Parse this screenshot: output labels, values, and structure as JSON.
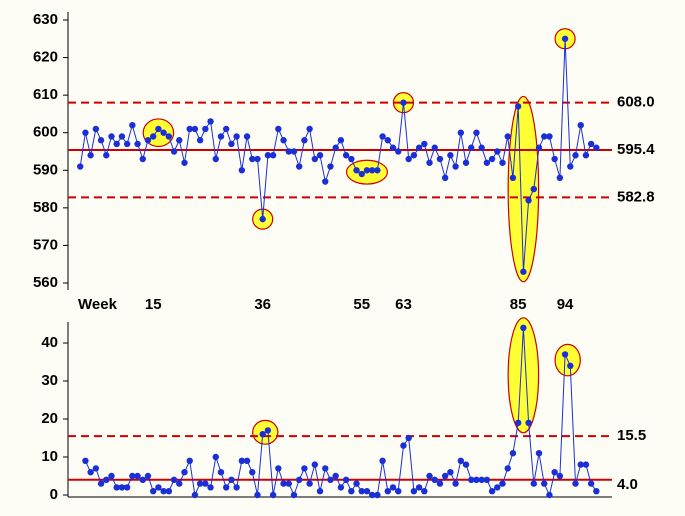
{
  "chart_data": [
    {
      "type": "line",
      "x": [
        1,
        2,
        3,
        4,
        5,
        6,
        7,
        8,
        9,
        10,
        11,
        12,
        13,
        14,
        15,
        16,
        17,
        18,
        19,
        20,
        21,
        22,
        23,
        24,
        25,
        26,
        27,
        28,
        29,
        30,
        31,
        32,
        33,
        34,
        35,
        36,
        37,
        38,
        39,
        40,
        41,
        42,
        43,
        44,
        45,
        46,
        47,
        48,
        49,
        50,
        51,
        52,
        53,
        54,
        55,
        56,
        57,
        58,
        59,
        60,
        61,
        62,
        63,
        64,
        65,
        66,
        67,
        68,
        69,
        70,
        71,
        72,
        73,
        74,
        75,
        76,
        77,
        78,
        79,
        80,
        81,
        82,
        83,
        84,
        85,
        86,
        87,
        88,
        89,
        90,
        91,
        92,
        93,
        94,
        95,
        96,
        97,
        98,
        99,
        100
      ],
      "values": [
        591,
        600,
        594,
        601,
        598,
        594,
        599,
        597,
        599,
        597,
        602,
        597,
        593,
        598,
        599,
        601,
        600,
        599,
        595,
        598,
        592,
        601,
        601,
        598,
        601,
        603,
        593,
        599,
        601,
        597,
        599,
        590,
        599,
        593,
        593,
        577,
        594,
        594,
        601,
        598,
        595,
        595,
        591,
        598,
        601,
        593,
        594,
        587,
        591,
        596,
        598,
        594,
        593,
        590,
        589,
        590,
        590,
        590,
        599,
        598,
        596,
        595,
        608,
        593,
        594,
        596,
        597,
        592,
        596,
        593,
        588,
        594,
        591,
        600,
        592,
        596,
        600,
        596,
        592,
        593,
        595,
        592,
        599,
        588,
        607,
        563,
        582,
        585,
        596,
        599,
        599,
        593,
        588,
        625,
        591,
        594,
        602,
        594,
        597,
        596
      ],
      "color": "#1a2fd6",
      "xlim": [
        0,
        103
      ],
      "ylim": [
        560,
        630
      ],
      "yticks": [
        560,
        570,
        580,
        590,
        600,
        610,
        620,
        630
      ],
      "xlabel": "Week",
      "xticks": [
        15,
        36,
        55,
        63,
        85,
        94
      ],
      "limits": [
        {
          "value": 608.0,
          "label": "608.0",
          "style": "dashed"
        },
        {
          "value": 595.4,
          "label": "595.4",
          "style": "solid"
        },
        {
          "value": 582.8,
          "label": "582.8",
          "style": "dashed"
        }
      ],
      "limit_color": "#cc0000",
      "highlights": [
        [
          15,
          17
        ],
        [
          36,
          36
        ],
        [
          54,
          58
        ],
        [
          63,
          63
        ],
        [
          85,
          87
        ],
        [
          94,
          94
        ]
      ]
    },
    {
      "type": "line",
      "x": [
        1,
        2,
        3,
        4,
        5,
        6,
        7,
        8,
        9,
        10,
        11,
        12,
        13,
        14,
        15,
        16,
        17,
        18,
        19,
        20,
        21,
        22,
        23,
        24,
        25,
        26,
        27,
        28,
        29,
        30,
        31,
        32,
        33,
        34,
        35,
        36,
        37,
        38,
        39,
        40,
        41,
        42,
        43,
        44,
        45,
        46,
        47,
        48,
        49,
        50,
        51,
        52,
        53,
        54,
        55,
        56,
        57,
        58,
        59,
        60,
        61,
        62,
        63,
        64,
        65,
        66,
        67,
        68,
        69,
        70,
        71,
        72,
        73,
        74,
        75,
        76,
        77,
        78,
        79,
        80,
        81,
        82,
        83,
        84,
        85,
        86,
        87,
        88,
        89,
        90,
        91,
        92,
        93,
        94,
        95,
        96,
        97,
        98,
        99,
        100
      ],
      "values": [
        null,
        9,
        6,
        7,
        3,
        4,
        5,
        2,
        2,
        2,
        5,
        5,
        4,
        5,
        1,
        2,
        1,
        1,
        4,
        3,
        6,
        9,
        0,
        3,
        3,
        2,
        10,
        6,
        2,
        4,
        2,
        9,
        9,
        6,
        0,
        16,
        17,
        0,
        7,
        3,
        3,
        0,
        4,
        7,
        3,
        8,
        1,
        7,
        4,
        5,
        2,
        4,
        1,
        3,
        1,
        1,
        0,
        0,
        9,
        1,
        2,
        1,
        13,
        15,
        1,
        2,
        1,
        5,
        4,
        3,
        5,
        6,
        3,
        9,
        8,
        4,
        4,
        4,
        4,
        1,
        2,
        3,
        7,
        11,
        19,
        44,
        19,
        3,
        11,
        3,
        0,
        6,
        5,
        37,
        34,
        3,
        8,
        8,
        3,
        1
      ],
      "color": "#1a2fd6",
      "xlim": [
        0,
        103
      ],
      "ylim": [
        0,
        45
      ],
      "yticks": [
        0,
        10,
        20,
        30,
        40
      ],
      "limits": [
        {
          "value": 15.5,
          "label": "15.5",
          "style": "dashed"
        },
        {
          "value": 4.0,
          "label": "4.0",
          "style": "solid"
        }
      ],
      "limit_color": "#cc0000",
      "highlights": [
        [
          36,
          37
        ],
        [
          85,
          87
        ],
        [
          94,
          95
        ]
      ]
    }
  ]
}
